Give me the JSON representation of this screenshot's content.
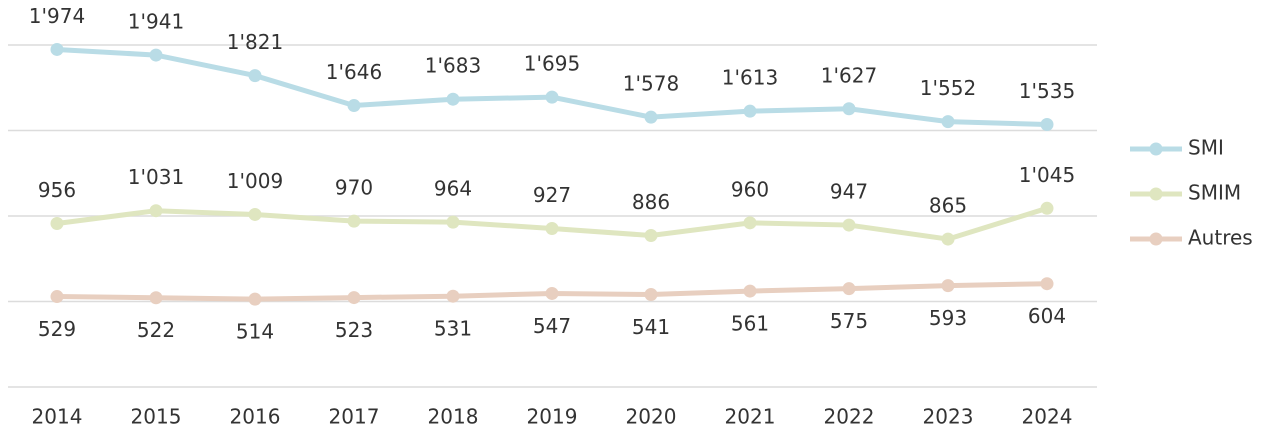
{
  "chart_data": {
    "type": "line",
    "categories": [
      "2014",
      "2015",
      "2016",
      "2017",
      "2018",
      "2019",
      "2020",
      "2021",
      "2022",
      "2023",
      "2024"
    ],
    "series": [
      {
        "name": "SMI",
        "color": "#b9dce6",
        "values": [
          1974,
          1941,
          1821,
          1646,
          1683,
          1695,
          1578,
          1613,
          1627,
          1552,
          1535
        ],
        "value_labels": [
          "1'974",
          "1'941",
          "1'821",
          "1'646",
          "1'683",
          "1'695",
          "1'578",
          "1'613",
          "1'627",
          "1'552",
          "1'535"
        ]
      },
      {
        "name": "SMIM",
        "color": "#dfe6c0",
        "values": [
          956,
          1031,
          1009,
          970,
          964,
          927,
          886,
          960,
          947,
          865,
          1045
        ],
        "value_labels": [
          "956",
          "1'031",
          "1'009",
          "970",
          "964",
          "927",
          "886",
          "960",
          "947",
          "865",
          "1'045"
        ]
      },
      {
        "name": "Autres",
        "color": "#e8cfc0",
        "values": [
          529,
          522,
          514,
          523,
          531,
          547,
          541,
          561,
          575,
          593,
          604
        ],
        "value_labels": [
          "529",
          "522",
          "514",
          "523",
          "531",
          "547",
          "541",
          "561",
          "575",
          "593",
          "604"
        ]
      }
    ],
    "ylim": [
      0,
      2000
    ],
    "yticks": [
      0,
      500,
      1000,
      1500,
      2000
    ],
    "grid": true,
    "legend": "right"
  }
}
